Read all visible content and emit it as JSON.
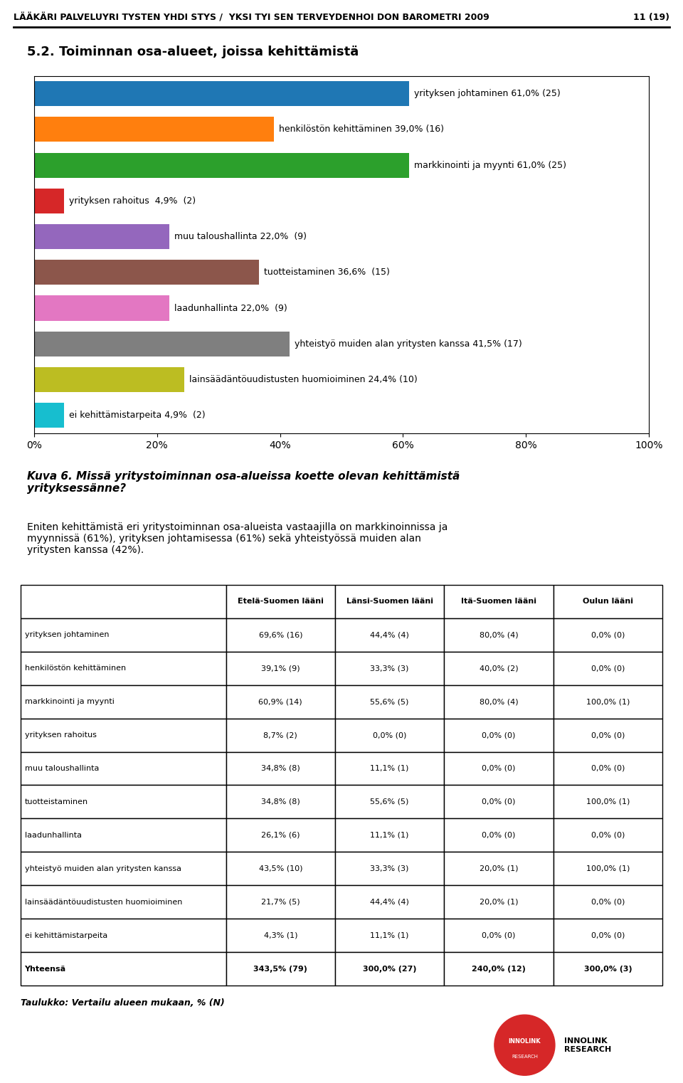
{
  "chart_data": [
    {
      "type": "bar",
      "orientation": "horizontal",
      "title": "5.2. Toiminnan osa-alueet, joissa kehittämistä",
      "subtitle": "Kuva 6. Missä yritystoiminnan osa-alueissa koette olevan kehittämistä\nyrityksessänne?",
      "annotations": [
        "LÄÄKÄRI PALVELUYRI TYSTEN YHDI STYS /  YKSI TYI SEN TERVEYDENHOI DON BAROMETRI 2009",
        "11 (19)",
        "Eniten kehittämistä eri yritystoiminnan osa-alueista vastaajilla on markkinoinnissa ja\nmyynnissä (61%), yrityksen johtamisessa (61%) sekä yhteistyössä muiden alan\nyritysten kanssa (42%).",
        "INNOLINK",
        "RESEARCH",
        "INNOLINK\nRESEARCH"
      ],
      "categories": [
        "yrityksen johtaminen 61,0% (25)",
        "henkilöstön kehittäminen 39,0% (16)",
        "markkinointi ja myynti 61,0% (25)",
        "yrityksen rahoitus  4,9%  (2)",
        "muu taloushallinta 22,0%  (9)",
        "tuotteistaminen 36,6%  (15)",
        "laadunhallinta 22,0%  (9)",
        "yhteistyö muiden alan yritysten kanssa 41,5% (17)",
        "lainsäädäntöuudistusten huomioiminen 24,4% (10)",
        "ei kehittämistarpeita 4,9%  (2)"
      ],
      "values": [
        61.0,
        39.0,
        61.0,
        4.9,
        22.0,
        36.6,
        22.0,
        41.5,
        24.4,
        4.9
      ],
      "xlim": [
        0,
        100
      ],
      "xticks": [
        {
          "value": 0,
          "label": "0%"
        },
        {
          "value": 20,
          "label": "20%"
        },
        {
          "value": 40,
          "label": "40%"
        },
        {
          "value": 60,
          "label": "60%"
        },
        {
          "value": 80,
          "label": "80%"
        },
        {
          "value": 100,
          "label": "100%"
        }
      ],
      "tick_labels": "x",
      "grid": false
    },
    {
      "type": "table",
      "title": "Taulukko: Vertailu alueen mukaan, % (N)",
      "columns": [
        null,
        "Etelä-Suomen lääni",
        "Länsi-Suomen lääni",
        "Itä-Suomen lääni",
        "Oulun lääni"
      ],
      "rows": [
        [
          "yrityksen johtaminen",
          "69,6% (16)",
          "44,4% (4)",
          "80,0% (4)",
          "0,0% (0)"
        ],
        [
          "henkilöstön kehittäminen",
          "39,1% (9)",
          "33,3% (3)",
          "40,0% (2)",
          "0,0% (0)"
        ],
        [
          "markkinointi ja myynti",
          "60,9% (14)",
          "55,6% (5)",
          "80,0% (4)",
          "100,0% (1)"
        ],
        [
          "yrityksen rahoitus",
          "8,7% (2)",
          "0,0% (0)",
          "0,0% (0)",
          "0,0% (0)"
        ],
        [
          "muu taloushallinta",
          "34,8% (8)",
          "11,1% (1)",
          "0,0% (0)",
          "0,0% (0)"
        ],
        [
          "tuotteistaminen",
          "34,8% (8)",
          "55,6% (5)",
          "0,0% (0)",
          "100,0% (1)"
        ],
        [
          "laadunhallinta",
          "26,1% (6)",
          "11,1% (1)",
          "0,0% (0)",
          "0,0% (0)"
        ],
        [
          "yhteistyö muiden alan yritysten kanssa",
          "43,5% (10)",
          "33,3% (3)",
          "20,0% (1)",
          "100,0% (1)"
        ],
        [
          "lainsäädäntöuudistusten huomioiminen",
          "21,7% (5)",
          "44,4% (4)",
          "20,0% (1)",
          "0,0% (0)"
        ],
        [
          "ei kehittämistarpeita",
          "4,3% (1)",
          "11,1% (1)",
          "0,0% (0)",
          "0,0% (0)"
        ],
        [
          "Yhteensä",
          "343,5% (79)",
          "300,0% (27)",
          "240,0% (12)",
          "300,0% (3)"
        ]
      ]
    }
  ]
}
